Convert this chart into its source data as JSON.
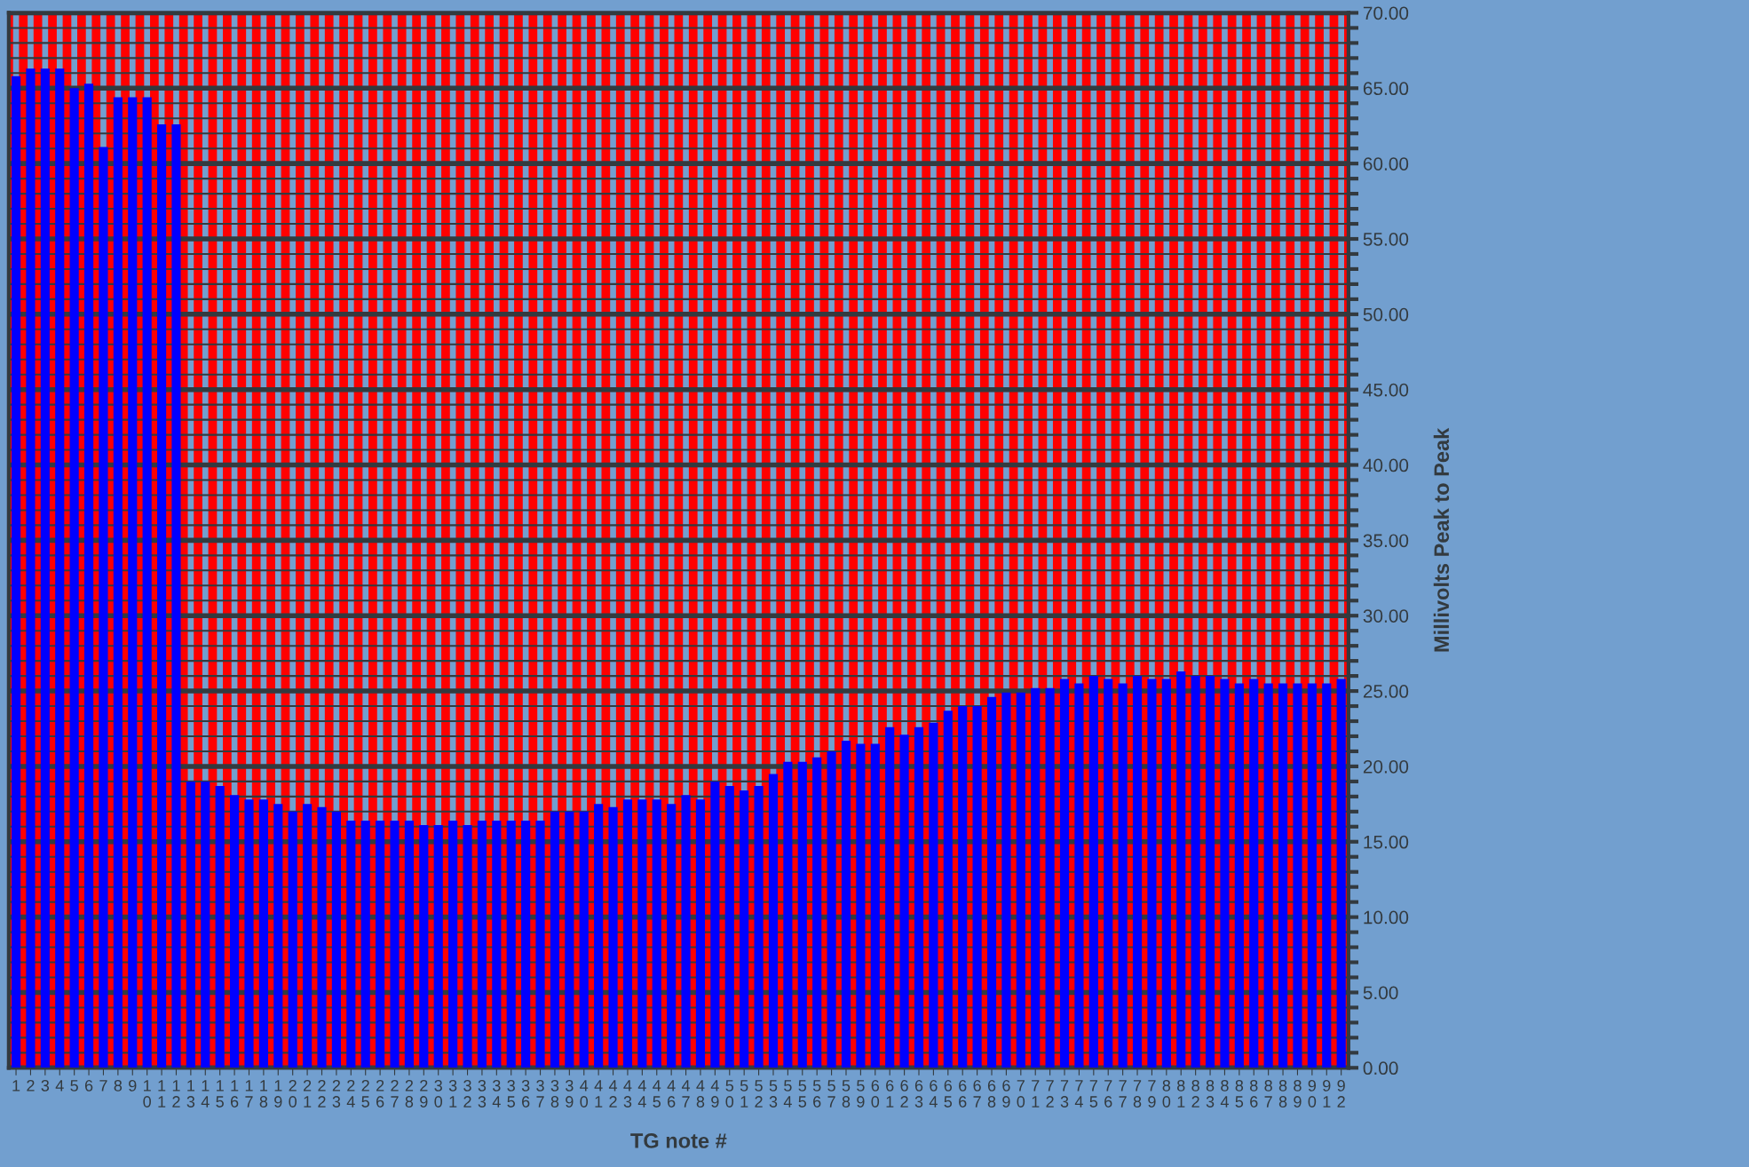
{
  "chart_data": {
    "type": "bar",
    "xlabel": "TG note #",
    "ylabel": "Millivolts Peak to Peak",
    "categories": [
      "1",
      "2",
      "3",
      "4",
      "5",
      "6",
      "7",
      "8",
      "9",
      "10",
      "11",
      "12",
      "13",
      "14",
      "15",
      "16",
      "17",
      "18",
      "19",
      "20",
      "21",
      "22",
      "23",
      "24",
      "25",
      "26",
      "27",
      "28",
      "29",
      "30",
      "31",
      "32",
      "33",
      "34",
      "35",
      "36",
      "37",
      "38",
      "39",
      "40",
      "41",
      "42",
      "43",
      "44",
      "45",
      "46",
      "47",
      "48",
      "49",
      "50",
      "51",
      "52",
      "53",
      "54",
      "55",
      "56",
      "57",
      "58",
      "59",
      "60",
      "61",
      "62",
      "63",
      "64",
      "65",
      "66",
      "67",
      "68",
      "69",
      "70",
      "71",
      "72",
      "73",
      "74",
      "75",
      "76",
      "77",
      "78",
      "79",
      "80",
      "81",
      "82",
      "83",
      "84",
      "85",
      "86",
      "87",
      "88",
      "89",
      "90",
      "91",
      "92"
    ],
    "values": [
      65.8,
      66.3,
      66.3,
      66.3,
      65.0,
      65.3,
      61.1,
      64.4,
      64.4,
      64.4,
      62.6,
      62.6,
      19.0,
      19.0,
      18.7,
      18.1,
      17.8,
      17.8,
      17.5,
      17.0,
      17.5,
      17.3,
      17.0,
      16.4,
      16.4,
      16.4,
      16.4,
      16.4,
      16.1,
      16.1,
      16.4,
      16.1,
      16.4,
      16.4,
      16.4,
      16.4,
      16.4,
      17.0,
      17.0,
      17.0,
      17.5,
      17.3,
      17.8,
      17.8,
      17.8,
      17.5,
      18.1,
      17.8,
      19.0,
      18.7,
      18.4,
      18.7,
      19.5,
      20.3,
      20.3,
      20.6,
      21.0,
      21.7,
      21.5,
      21.5,
      22.6,
      22.1,
      22.6,
      22.9,
      23.7,
      24.0,
      24.0,
      24.6,
      24.9,
      24.9,
      25.2,
      25.2,
      25.8,
      25.5,
      26.0,
      25.8,
      25.5,
      26.0,
      25.8,
      25.8,
      26.3,
      26.0,
      26.0,
      25.8,
      25.5,
      25.8,
      25.5,
      25.5,
      25.5,
      25.5,
      25.5,
      25.8
    ],
    "color": "#0000ff",
    "ylim": [
      0,
      70
    ],
    "yticks": [
      {
        "value": 0,
        "label": "0.00"
      },
      {
        "value": 1,
        "label": null
      },
      {
        "value": 2,
        "label": null
      },
      {
        "value": 3,
        "label": null
      },
      {
        "value": 4,
        "label": null
      },
      {
        "value": 5,
        "label": "5.00"
      },
      {
        "value": 6,
        "label": null
      },
      {
        "value": 7,
        "label": null
      },
      {
        "value": 8,
        "label": null
      },
      {
        "value": 9,
        "label": null
      },
      {
        "value": 10,
        "label": "10.00"
      },
      {
        "value": 11,
        "label": null
      },
      {
        "value": 12,
        "label": null
      },
      {
        "value": 13,
        "label": null
      },
      {
        "value": 14,
        "label": null
      },
      {
        "value": 15,
        "label": "15.00"
      },
      {
        "value": 16,
        "label": null
      },
      {
        "value": 17,
        "label": null
      },
      {
        "value": 18,
        "label": null
      },
      {
        "value": 19,
        "label": null
      },
      {
        "value": 20,
        "label": "20.00"
      },
      {
        "value": 21,
        "label": null
      },
      {
        "value": 22,
        "label": null
      },
      {
        "value": 23,
        "label": null
      },
      {
        "value": 24,
        "label": null
      },
      {
        "value": 25,
        "label": "25.00"
      },
      {
        "value": 26,
        "label": null
      },
      {
        "value": 27,
        "label": null
      },
      {
        "value": 28,
        "label": null
      },
      {
        "value": 29,
        "label": null
      },
      {
        "value": 30,
        "label": "30.00"
      },
      {
        "value": 31,
        "label": null
      },
      {
        "value": 32,
        "label": null
      },
      {
        "value": 33,
        "label": null
      },
      {
        "value": 34,
        "label": null
      },
      {
        "value": 35,
        "label": "35.00"
      },
      {
        "value": 36,
        "label": null
      },
      {
        "value": 37,
        "label": null
      },
      {
        "value": 38,
        "label": null
      },
      {
        "value": 39,
        "label": null
      },
      {
        "value": 40,
        "label": "40.00"
      },
      {
        "value": 41,
        "label": null
      },
      {
        "value": 42,
        "label": null
      },
      {
        "value": 43,
        "label": null
      },
      {
        "value": 44,
        "label": null
      },
      {
        "value": 45,
        "label": "45.00"
      },
      {
        "value": 46,
        "label": null
      },
      {
        "value": 47,
        "label": null
      },
      {
        "value": 48,
        "label": null
      },
      {
        "value": 49,
        "label": null
      },
      {
        "value": 50,
        "label": "50.00"
      },
      {
        "value": 51,
        "label": null
      },
      {
        "value": 52,
        "label": null
      },
      {
        "value": 53,
        "label": null
      },
      {
        "value": 54,
        "label": null
      },
      {
        "value": 55,
        "label": "55.00"
      },
      {
        "value": 56,
        "label": null
      },
      {
        "value": 57,
        "label": null
      },
      {
        "value": 58,
        "label": null
      },
      {
        "value": 59,
        "label": null
      },
      {
        "value": 60,
        "label": "60.00"
      },
      {
        "value": 61,
        "label": null
      },
      {
        "value": 62,
        "label": null
      },
      {
        "value": 63,
        "label": null
      },
      {
        "value": 64,
        "label": null
      },
      {
        "value": 65,
        "label": "65.00"
      },
      {
        "value": 66,
        "label": null
      },
      {
        "value": 67,
        "label": null
      },
      {
        "value": 68,
        "label": null
      },
      {
        "value": 69,
        "label": null
      },
      {
        "value": 70,
        "label": "70.00"
      }
    ],
    "grid": true
  }
}
